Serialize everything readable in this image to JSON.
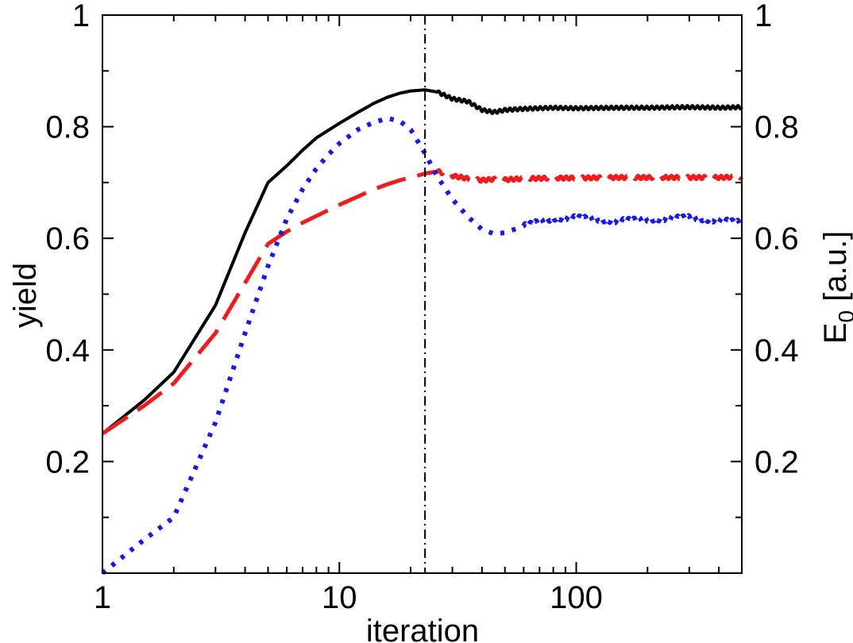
{
  "chart_data": {
    "type": "line",
    "xscale": "log",
    "xlim": [
      1,
      500
    ],
    "ylim": [
      0,
      1
    ],
    "y2lim": [
      0,
      1
    ],
    "xlabel": "iteration",
    "ylabel": "yield",
    "y2label_main": "E",
    "y2label_sub": "0",
    "y2label_rest": " [a.u.]",
    "xticks": [
      {
        "value": 1,
        "label": "1"
      },
      {
        "value": 10,
        "label": "10"
      },
      {
        "value": 100,
        "label": "100"
      }
    ],
    "yticks": [
      {
        "value": 0.2,
        "label": "0.2"
      },
      {
        "value": 0.4,
        "label": "0.4"
      },
      {
        "value": 0.6,
        "label": "0.6"
      },
      {
        "value": 0.8,
        "label": "0.8"
      },
      {
        "value": 1,
        "label": "1"
      }
    ],
    "y2ticks": [
      {
        "value": 0.2,
        "label": "0.2"
      },
      {
        "value": 0.4,
        "label": "0.4"
      },
      {
        "value": 0.6,
        "label": "0.6"
      },
      {
        "value": 0.8,
        "label": "0.8"
      },
      {
        "value": 1,
        "label": "1"
      }
    ],
    "vline": {
      "x": 23,
      "style": "dash-dot",
      "color": "#000000"
    },
    "series": [
      {
        "name": "black-solid",
        "style": "solid",
        "color": "#000000",
        "x": [
          1,
          1.5,
          2,
          3,
          4,
          5,
          6,
          7,
          8,
          10,
          12,
          14,
          16,
          18,
          20,
          23,
          26,
          30,
          35,
          40,
          45,
          50,
          60,
          80,
          100,
          150,
          200,
          300,
          400,
          500
        ],
        "y": [
          0.25,
          0.31,
          0.36,
          0.48,
          0.61,
          0.7,
          0.73,
          0.758,
          0.78,
          0.806,
          0.826,
          0.842,
          0.853,
          0.86,
          0.864,
          0.866,
          0.862,
          0.85,
          0.845,
          0.83,
          0.826,
          0.83,
          0.832,
          0.834,
          0.833,
          0.834,
          0.834,
          0.835,
          0.834,
          0.835
        ],
        "ripple": {
          "from": 26,
          "amplitude": 0.003,
          "cycles": 60
        }
      },
      {
        "name": "red-dashed",
        "style": "dashed",
        "color": "#ee1c1c",
        "x": [
          1,
          1.5,
          2,
          3,
          4,
          5,
          6,
          7,
          8,
          10,
          12,
          14,
          16,
          18,
          20,
          23,
          26,
          30,
          35,
          40,
          45,
          50,
          60,
          80,
          100,
          150,
          200,
          300,
          400,
          500
        ],
        "y": [
          0.25,
          0.3,
          0.34,
          0.43,
          0.52,
          0.59,
          0.612,
          0.628,
          0.64,
          0.66,
          0.675,
          0.688,
          0.697,
          0.704,
          0.709,
          0.716,
          0.72,
          0.712,
          0.707,
          0.704,
          0.706,
          0.705,
          0.707,
          0.708,
          0.708,
          0.709,
          0.709,
          0.709,
          0.709,
          0.71
        ],
        "ripple": {
          "from": 26,
          "amplitude": 0.003,
          "cycles": 55
        }
      },
      {
        "name": "blue-dotted",
        "style": "dotted",
        "color": "#1919e6",
        "x": [
          1,
          1.5,
          2,
          3,
          4,
          5,
          6,
          7,
          8,
          9,
          10,
          12,
          14,
          16,
          18,
          20,
          23,
          26,
          30,
          35,
          40,
          45,
          50,
          60,
          80,
          100,
          150,
          200,
          300,
          400,
          500
        ],
        "y": [
          0.0,
          0.06,
          0.1,
          0.27,
          0.43,
          0.55,
          0.635,
          0.688,
          0.725,
          0.75,
          0.77,
          0.795,
          0.808,
          0.815,
          0.81,
          0.795,
          0.752,
          0.71,
          0.67,
          0.638,
          0.616,
          0.608,
          0.61,
          0.622,
          0.636,
          0.637,
          0.631,
          0.634,
          0.637,
          0.632,
          0.628
        ],
        "ripple": {
          "from": 60,
          "amplitude": 0.004,
          "cycles": 40
        }
      }
    ]
  }
}
